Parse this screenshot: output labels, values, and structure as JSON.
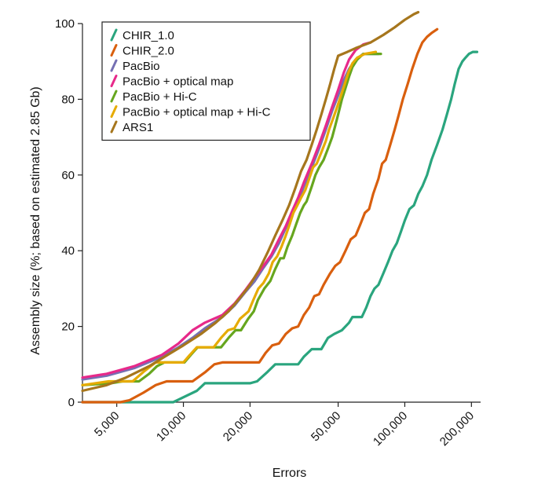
{
  "chart_data": {
    "type": "line",
    "title": "",
    "xlabel": "Errors",
    "ylabel": "Assembly size (%; based on estimated 2.85 Gb)",
    "x_scale": "log",
    "xlim": [
      3500,
      220000
    ],
    "ylim": [
      0,
      100
    ],
    "x_ticks": [
      5000,
      10000,
      20000,
      50000,
      100000,
      200000
    ],
    "x_tick_labels": [
      "5,000",
      "10,000",
      "20,000",
      "50,000",
      "100,000",
      "200,000"
    ],
    "y_ticks": [
      0,
      20,
      40,
      60,
      80,
      100
    ],
    "y_tick_labels": [
      "0",
      "20",
      "40",
      "60",
      "80",
      "100"
    ],
    "grid": false,
    "legend_position": "top-left",
    "series": [
      {
        "name": "CHIR_1.0",
        "color": "#2aa57e",
        "points": [
          [
            3500,
            0
          ],
          [
            9000,
            0
          ],
          [
            11500,
            3
          ],
          [
            12500,
            5
          ],
          [
            20000,
            5
          ],
          [
            21500,
            5.5
          ],
          [
            24000,
            8
          ],
          [
            26000,
            10
          ],
          [
            33000,
            10
          ],
          [
            35000,
            12
          ],
          [
            38000,
            14
          ],
          [
            42000,
            14
          ],
          [
            45000,
            17
          ],
          [
            48000,
            18
          ],
          [
            52000,
            19
          ],
          [
            56000,
            21
          ],
          [
            58000,
            22.5
          ],
          [
            64000,
            22.5
          ],
          [
            67000,
            25
          ],
          [
            70000,
            28
          ],
          [
            73000,
            30
          ],
          [
            76000,
            31
          ],
          [
            80000,
            34
          ],
          [
            84000,
            37
          ],
          [
            88000,
            40
          ],
          [
            92000,
            42
          ],
          [
            96000,
            45
          ],
          [
            100000,
            48
          ],
          [
            105000,
            51
          ],
          [
            110000,
            52
          ],
          [
            115000,
            55
          ],
          [
            120000,
            57
          ],
          [
            126000,
            60
          ],
          [
            132000,
            64
          ],
          [
            140000,
            68
          ],
          [
            148000,
            72
          ],
          [
            155000,
            76
          ],
          [
            162000,
            80
          ],
          [
            168000,
            84
          ],
          [
            175000,
            88
          ],
          [
            182000,
            90
          ],
          [
            188000,
            91
          ],
          [
            195000,
            92
          ],
          [
            203000,
            92.5
          ],
          [
            212000,
            92.5
          ]
        ]
      },
      {
        "name": "CHIR_2.0",
        "color": "#d95f0e",
        "points": [
          [
            3500,
            0
          ],
          [
            5200,
            0
          ],
          [
            5700,
            0.5
          ],
          [
            6600,
            2.5
          ],
          [
            7500,
            4.5
          ],
          [
            8400,
            5.5
          ],
          [
            11000,
            5.5
          ],
          [
            12600,
            8
          ],
          [
            13800,
            10
          ],
          [
            15000,
            10.5
          ],
          [
            22000,
            10.5
          ],
          [
            23500,
            13
          ],
          [
            25200,
            15
          ],
          [
            27000,
            15.5
          ],
          [
            29000,
            18
          ],
          [
            31000,
            19.5
          ],
          [
            33000,
            20
          ],
          [
            35000,
            23
          ],
          [
            37000,
            25
          ],
          [
            39000,
            28
          ],
          [
            41000,
            28.5
          ],
          [
            43000,
            31
          ],
          [
            46000,
            34
          ],
          [
            48500,
            36
          ],
          [
            51000,
            37
          ],
          [
            54000,
            40
          ],
          [
            57000,
            43
          ],
          [
            60000,
            44
          ],
          [
            63000,
            47
          ],
          [
            66000,
            50
          ],
          [
            69000,
            51
          ],
          [
            72000,
            55
          ],
          [
            76000,
            59
          ],
          [
            79000,
            63
          ],
          [
            82000,
            64
          ],
          [
            86000,
            68
          ],
          [
            90000,
            72
          ],
          [
            94000,
            76
          ],
          [
            98000,
            80
          ],
          [
            103000,
            84
          ],
          [
            108000,
            88
          ],
          [
            114000,
            92
          ],
          [
            120000,
            95
          ],
          [
            126000,
            96.5
          ],
          [
            132000,
            97.5
          ],
          [
            140000,
            98.5
          ]
        ]
      },
      {
        "name": "PacBio",
        "color": "#7570b3",
        "points": [
          [
            3500,
            6
          ],
          [
            4500,
            7
          ],
          [
            6000,
            9
          ],
          [
            8000,
            12
          ],
          [
            9500,
            14.5
          ],
          [
            11000,
            17
          ],
          [
            12500,
            19.5
          ],
          [
            15000,
            22.5
          ],
          [
            17000,
            25.5
          ],
          [
            19000,
            29
          ],
          [
            21000,
            32
          ],
          [
            23000,
            35.5
          ],
          [
            25000,
            38.5
          ],
          [
            27000,
            42
          ],
          [
            29000,
            46
          ],
          [
            31000,
            50
          ],
          [
            33000,
            53
          ],
          [
            35000,
            57
          ],
          [
            38000,
            62
          ],
          [
            41000,
            67
          ],
          [
            44000,
            72
          ],
          [
            47000,
            77
          ],
          [
            50000,
            81
          ],
          [
            53000,
            85
          ],
          [
            56000,
            88
          ],
          [
            60000,
            90.5
          ],
          [
            65000,
            92
          ],
          [
            70000,
            92
          ],
          [
            76000,
            92
          ]
        ]
      },
      {
        "name": "PacBio + optical map",
        "color": "#e7298a",
        "points": [
          [
            3500,
            6.5
          ],
          [
            4500,
            7.5
          ],
          [
            6000,
            9.5
          ],
          [
            8000,
            12.5
          ],
          [
            9500,
            15.5
          ],
          [
            11000,
            19
          ],
          [
            12500,
            21
          ],
          [
            15000,
            23
          ],
          [
            17000,
            26
          ],
          [
            19000,
            29.5
          ],
          [
            21000,
            33
          ],
          [
            23000,
            36
          ],
          [
            25000,
            39
          ],
          [
            27000,
            43
          ],
          [
            29000,
            46.5
          ],
          [
            31000,
            50.5
          ],
          [
            33000,
            54
          ],
          [
            35000,
            58
          ],
          [
            38000,
            63
          ],
          [
            41000,
            68
          ],
          [
            44000,
            73
          ],
          [
            47000,
            78
          ],
          [
            50000,
            82.5
          ],
          [
            53000,
            87
          ],
          [
            56000,
            90.5
          ],
          [
            60000,
            93
          ],
          [
            65000,
            94.5
          ],
          [
            70000,
            95
          ]
        ]
      },
      {
        "name": "PacBio + Hi-C",
        "color": "#66a61e",
        "points": [
          [
            3500,
            4.5
          ],
          [
            4700,
            5
          ],
          [
            5300,
            5.5
          ],
          [
            6300,
            5.5
          ],
          [
            7000,
            7.5
          ],
          [
            7600,
            9.5
          ],
          [
            8200,
            10.5
          ],
          [
            10100,
            10.5
          ],
          [
            10800,
            12.5
          ],
          [
            11600,
            14.5
          ],
          [
            14800,
            14.5
          ],
          [
            16000,
            17
          ],
          [
            17200,
            19
          ],
          [
            18200,
            19
          ],
          [
            19600,
            22
          ],
          [
            20800,
            24
          ],
          [
            21700,
            27
          ],
          [
            23200,
            30
          ],
          [
            24700,
            32
          ],
          [
            25900,
            35
          ],
          [
            27400,
            38
          ],
          [
            28400,
            38
          ],
          [
            29500,
            41
          ],
          [
            31000,
            44
          ],
          [
            32300,
            47
          ],
          [
            33700,
            50
          ],
          [
            35000,
            52
          ],
          [
            36000,
            53
          ],
          [
            38000,
            57
          ],
          [
            39500,
            60
          ],
          [
            41000,
            62
          ],
          [
            43000,
            64
          ],
          [
            45000,
            67
          ],
          [
            47000,
            70
          ],
          [
            48500,
            73
          ],
          [
            50000,
            76
          ],
          [
            52000,
            80
          ],
          [
            54000,
            83
          ],
          [
            56000,
            86
          ],
          [
            58000,
            88.5
          ],
          [
            61000,
            90.5
          ],
          [
            65000,
            92
          ],
          [
            72000,
            92
          ],
          [
            78000,
            92
          ]
        ]
      },
      {
        "name": "PacBio + optical map + Hi-C",
        "color": "#e6ab02",
        "points": [
          [
            3500,
            4.5
          ],
          [
            4600,
            5.5
          ],
          [
            5900,
            5.5
          ],
          [
            6600,
            8
          ],
          [
            7500,
            10.5
          ],
          [
            10000,
            10.5
          ],
          [
            10700,
            12.5
          ],
          [
            11500,
            14.5
          ],
          [
            13700,
            14.5
          ],
          [
            14800,
            17
          ],
          [
            15900,
            19
          ],
          [
            17000,
            19.5
          ],
          [
            18000,
            22
          ],
          [
            19700,
            24
          ],
          [
            20700,
            27
          ],
          [
            21800,
            30
          ],
          [
            23000,
            31.5
          ],
          [
            24300,
            34
          ],
          [
            25300,
            37
          ],
          [
            26500,
            38.5
          ],
          [
            27700,
            41
          ],
          [
            29000,
            44
          ],
          [
            30200,
            47
          ],
          [
            31400,
            50
          ],
          [
            32700,
            52
          ],
          [
            34000,
            54
          ],
          [
            35500,
            56
          ],
          [
            37000,
            59
          ],
          [
            38500,
            62
          ],
          [
            40000,
            63
          ],
          [
            42000,
            66
          ],
          [
            44000,
            69
          ],
          [
            45500,
            72
          ],
          [
            47500,
            75
          ],
          [
            49500,
            78
          ],
          [
            51500,
            81
          ],
          [
            53500,
            84
          ],
          [
            55500,
            87
          ],
          [
            58000,
            89.5
          ],
          [
            61000,
            91
          ],
          [
            66000,
            92
          ],
          [
            74000,
            92.5
          ]
        ]
      },
      {
        "name": "ARS1",
        "color": "#a6761d",
        "points": [
          [
            3500,
            3
          ],
          [
            4500,
            4.5
          ],
          [
            5500,
            6.5
          ],
          [
            7000,
            9.5
          ],
          [
            8500,
            12.5
          ],
          [
            10000,
            15
          ],
          [
            12000,
            18
          ],
          [
            14000,
            21
          ],
          [
            16000,
            24
          ],
          [
            18000,
            27.5
          ],
          [
            20000,
            31
          ],
          [
            22000,
            35
          ],
          [
            24000,
            39.5
          ],
          [
            26000,
            44
          ],
          [
            28000,
            48
          ],
          [
            30000,
            52
          ],
          [
            32000,
            56.5
          ],
          [
            34000,
            61
          ],
          [
            36000,
            64
          ],
          [
            38000,
            68
          ],
          [
            40000,
            72
          ],
          [
            42000,
            76
          ],
          [
            44000,
            80
          ],
          [
            46000,
            84
          ],
          [
            48000,
            88
          ],
          [
            50000,
            91.5
          ],
          [
            55000,
            92.5
          ],
          [
            60000,
            93.5
          ],
          [
            70000,
            95
          ],
          [
            80000,
            97
          ],
          [
            90000,
            99
          ],
          [
            100000,
            101
          ],
          [
            110000,
            102.5
          ],
          [
            115000,
            103
          ]
        ]
      }
    ]
  }
}
